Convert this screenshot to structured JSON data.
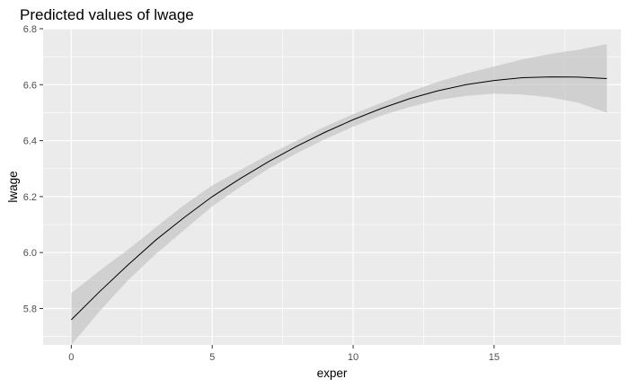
{
  "chart_data": {
    "type": "line",
    "title": "Predicted values of lwage",
    "xlabel": "exper",
    "ylabel": "lwage",
    "xlim": [
      -1,
      19.5
    ],
    "ylim": [
      5.67,
      6.8
    ],
    "x_ticks": [
      0,
      5,
      10,
      15
    ],
    "x_minor_ticks": [
      2.5,
      7.5,
      12.5,
      17.5
    ],
    "y_ticks": [
      5.8,
      6.0,
      6.2,
      6.4,
      6.6,
      6.8
    ],
    "y_minor_ticks": [
      5.7,
      5.9,
      6.1,
      6.3,
      6.5,
      6.7
    ],
    "y_tick_labels": [
      "5.8",
      "6.0",
      "6.2",
      "6.4",
      "6.6",
      "6.8"
    ],
    "grid": true,
    "legend": "none",
    "series": [
      {
        "x": [
          0,
          1,
          2,
          3,
          4,
          5,
          6,
          7,
          8,
          9,
          10,
          11,
          12,
          13,
          14,
          15,
          16,
          17,
          18,
          19
        ],
        "values": [
          5.76,
          5.86,
          5.955,
          6.045,
          6.125,
          6.2,
          6.265,
          6.325,
          6.38,
          6.43,
          6.475,
          6.515,
          6.55,
          6.578,
          6.6,
          6.615,
          6.625,
          6.628,
          6.627,
          6.622
        ],
        "lower": [
          5.67,
          5.79,
          5.9,
          5.995,
          6.08,
          6.165,
          6.235,
          6.3,
          6.355,
          6.405,
          6.45,
          6.49,
          6.52,
          6.545,
          6.56,
          6.568,
          6.565,
          6.555,
          6.535,
          6.5
        ],
        "upper": [
          5.855,
          5.935,
          6.01,
          6.09,
          6.17,
          6.24,
          6.295,
          6.35,
          6.4,
          6.45,
          6.495,
          6.535,
          6.575,
          6.61,
          6.64,
          6.665,
          6.69,
          6.71,
          6.725,
          6.745
        ]
      }
    ],
    "colors": {
      "panel_background": "#EBEBEB",
      "grid": "#FFFFFF",
      "ribbon": "#BEBEBE",
      "line": "#000000"
    }
  }
}
